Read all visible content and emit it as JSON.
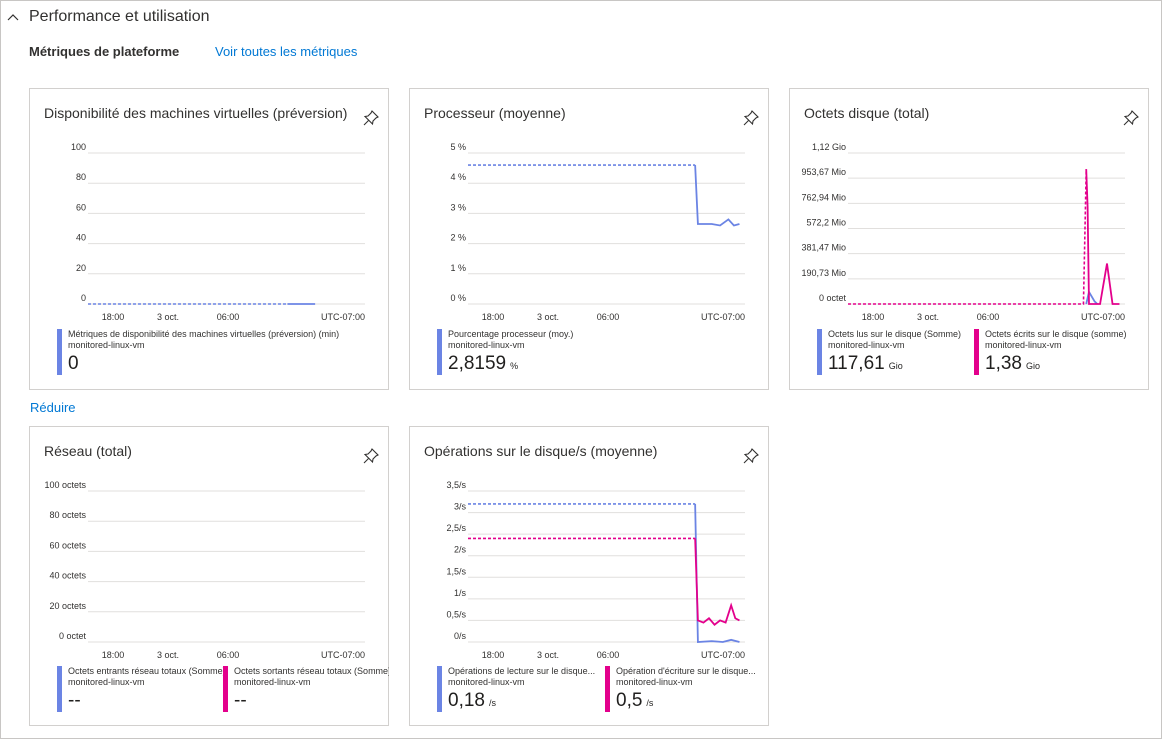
{
  "section": {
    "title": "Performance et utilisation"
  },
  "metrics": {
    "title": "Métriques de plateforme",
    "view_all": "Voir toutes les métriques"
  },
  "reduce_link": "Réduire",
  "colors": {
    "blue": "#6b84e4",
    "magenta": "#e3008c",
    "link": "#0078d4",
    "grid": "#e1dfdd"
  },
  "icons": {
    "collapse": "chevron-up-icon",
    "pin": "pin-icon"
  },
  "cards": {
    "availability": {
      "title": "Disponibilité des machines virtuelles (préversion)",
      "legend": [
        {
          "name": "Métriques de disponibilité des machines virtuelles (préversion) (min)",
          "resource": "monitored-linux-vm",
          "value": "0",
          "unit": ""
        }
      ]
    },
    "cpu": {
      "title": "Processeur (moyenne)",
      "legend": [
        {
          "name": "Pourcentage processeur (moy.)",
          "resource": "monitored-linux-vm",
          "value": "2,8159",
          "unit": "%"
        }
      ]
    },
    "disk_bytes": {
      "title": "Octets disque (total)",
      "legend": [
        {
          "name": "Octets lus sur le disque (Somme)",
          "resource": "monitored-linux-vm",
          "value": "117,61",
          "unit": "Gio"
        },
        {
          "name": "Octets écrits sur le disque (somme)",
          "resource": "monitored-linux-vm",
          "value": "1,38",
          "unit": "Gio"
        }
      ]
    },
    "network": {
      "title": "Réseau (total)",
      "legend": [
        {
          "name": "Octets entrants réseau totaux (Somme)",
          "resource": "monitored-linux-vm",
          "value": "--",
          "unit": ""
        },
        {
          "name": "Octets sortants réseau totaux (Somme)",
          "resource": "monitored-linux-vm",
          "value": "--",
          "unit": ""
        }
      ]
    },
    "disk_ops": {
      "title": "Opérations sur le disque/s (moyenne)",
      "legend": [
        {
          "name": "Opérations de lecture sur le disque...",
          "resource": "monitored-linux-vm",
          "value": "0,18",
          "unit": "/s"
        },
        {
          "name": "Opération d'écriture sur le disque...",
          "resource": "monitored-linux-vm",
          "value": "0,5",
          "unit": "/s"
        }
      ]
    }
  },
  "chart_data": [
    {
      "id": "availability",
      "type": "line",
      "yticks": [
        "100",
        "80",
        "60",
        "40",
        "20",
        "0"
      ],
      "ylim": [
        0,
        100
      ],
      "xticks": [
        "18:00",
        "3 oct.",
        "06:00",
        "UTC-07:00"
      ],
      "series": [
        {
          "name": "Métriques de disponibilité des machines virtuelles (préversion) (min)",
          "color": "#6b84e4",
          "dashed": [
            [
              0,
              0
            ],
            [
              0.72,
              0
            ]
          ],
          "solid": [
            [
              0.72,
              0
            ],
            [
              0.82,
              0
            ]
          ]
        }
      ]
    },
    {
      "id": "cpu",
      "type": "line",
      "yticks": [
        "5 %",
        "4 %",
        "3 %",
        "2 %",
        "1 %",
        "0 %"
      ],
      "ylim": [
        0,
        5
      ],
      "xticks": [
        "18:00",
        "3 oct.",
        "06:00",
        "UTC-07:00"
      ],
      "series": [
        {
          "name": "Pourcentage processeur (moy.)",
          "color": "#6b84e4",
          "dashed": [
            [
              0,
              4.6
            ],
            [
              0.82,
              4.6
            ]
          ],
          "solid": [
            [
              0.82,
              4.6
            ],
            [
              0.83,
              2.65
            ],
            [
              0.88,
              2.65
            ],
            [
              0.91,
              2.6
            ],
            [
              0.94,
              2.8
            ],
            [
              0.96,
              2.6
            ],
            [
              0.98,
              2.65
            ]
          ]
        }
      ]
    },
    {
      "id": "disk_bytes",
      "type": "line",
      "yticks": [
        "1,12 Gio",
        "953,67 Mio",
        "762,94 Mio",
        "572,2 Mio",
        "381,47 Mio",
        "190,73 Mio",
        "0 octet"
      ],
      "ylim": [
        0,
        1.12
      ],
      "xticks": [
        "18:00",
        "3 oct.",
        "06:00",
        "UTC-07:00"
      ],
      "series": [
        {
          "name": "Octets lus sur le disque (Somme)",
          "color": "#6b84e4",
          "dashed": [],
          "solid": [
            [
              0.86,
              0
            ],
            [
              0.87,
              0.09
            ],
            [
              0.89,
              0.02
            ],
            [
              0.9,
              0
            ]
          ]
        },
        {
          "name": "Octets écrits sur le disque (somme)",
          "color": "#e3008c",
          "dashed": [
            [
              0,
              0
            ],
            [
              0.85,
              0
            ],
            [
              0.86,
              1.0
            ]
          ],
          "solid": [
            [
              0.86,
              1.0
            ],
            [
              0.865,
              0.72
            ],
            [
              0.87,
              0
            ],
            [
              0.91,
              0
            ],
            [
              0.935,
              0.3
            ],
            [
              0.955,
              0
            ],
            [
              0.98,
              0
            ]
          ]
        }
      ]
    },
    {
      "id": "network",
      "type": "line",
      "yticks": [
        "100 octets",
        "80 octets",
        "60 octets",
        "40 octets",
        "20 octets",
        "0 octet"
      ],
      "ylim": [
        0,
        100
      ],
      "xticks": [
        "18:00",
        "3 oct.",
        "06:00",
        "UTC-07:00"
      ],
      "series": []
    },
    {
      "id": "disk_ops",
      "type": "line",
      "yticks": [
        "3,5/s",
        "3/s",
        "2,5/s",
        "2/s",
        "1,5/s",
        "1/s",
        "0,5/s",
        "0/s"
      ],
      "ylim": [
        0,
        3.5
      ],
      "xticks": [
        "18:00",
        "3 oct.",
        "06:00",
        "UTC-07:00"
      ],
      "series": [
        {
          "name": "Opérations de lecture sur le disque...",
          "color": "#6b84e4",
          "dashed": [
            [
              0,
              3.2
            ],
            [
              0.82,
              3.2
            ]
          ],
          "solid": [
            [
              0.82,
              3.2
            ],
            [
              0.83,
              0
            ],
            [
              0.88,
              0.02
            ],
            [
              0.92,
              0
            ],
            [
              0.95,
              0.05
            ],
            [
              0.98,
              0
            ]
          ]
        },
        {
          "name": "Opération d'écriture sur le disque...",
          "color": "#e3008c",
          "dashed": [
            [
              0,
              2.4
            ],
            [
              0.82,
              2.4
            ]
          ],
          "solid": [
            [
              0.82,
              2.4
            ],
            [
              0.83,
              0.5
            ],
            [
              0.85,
              0.45
            ],
            [
              0.87,
              0.55
            ],
            [
              0.89,
              0.4
            ],
            [
              0.91,
              0.5
            ],
            [
              0.93,
              0.45
            ],
            [
              0.95,
              0.85
            ],
            [
              0.965,
              0.55
            ],
            [
              0.98,
              0.5
            ]
          ]
        }
      ]
    }
  ]
}
